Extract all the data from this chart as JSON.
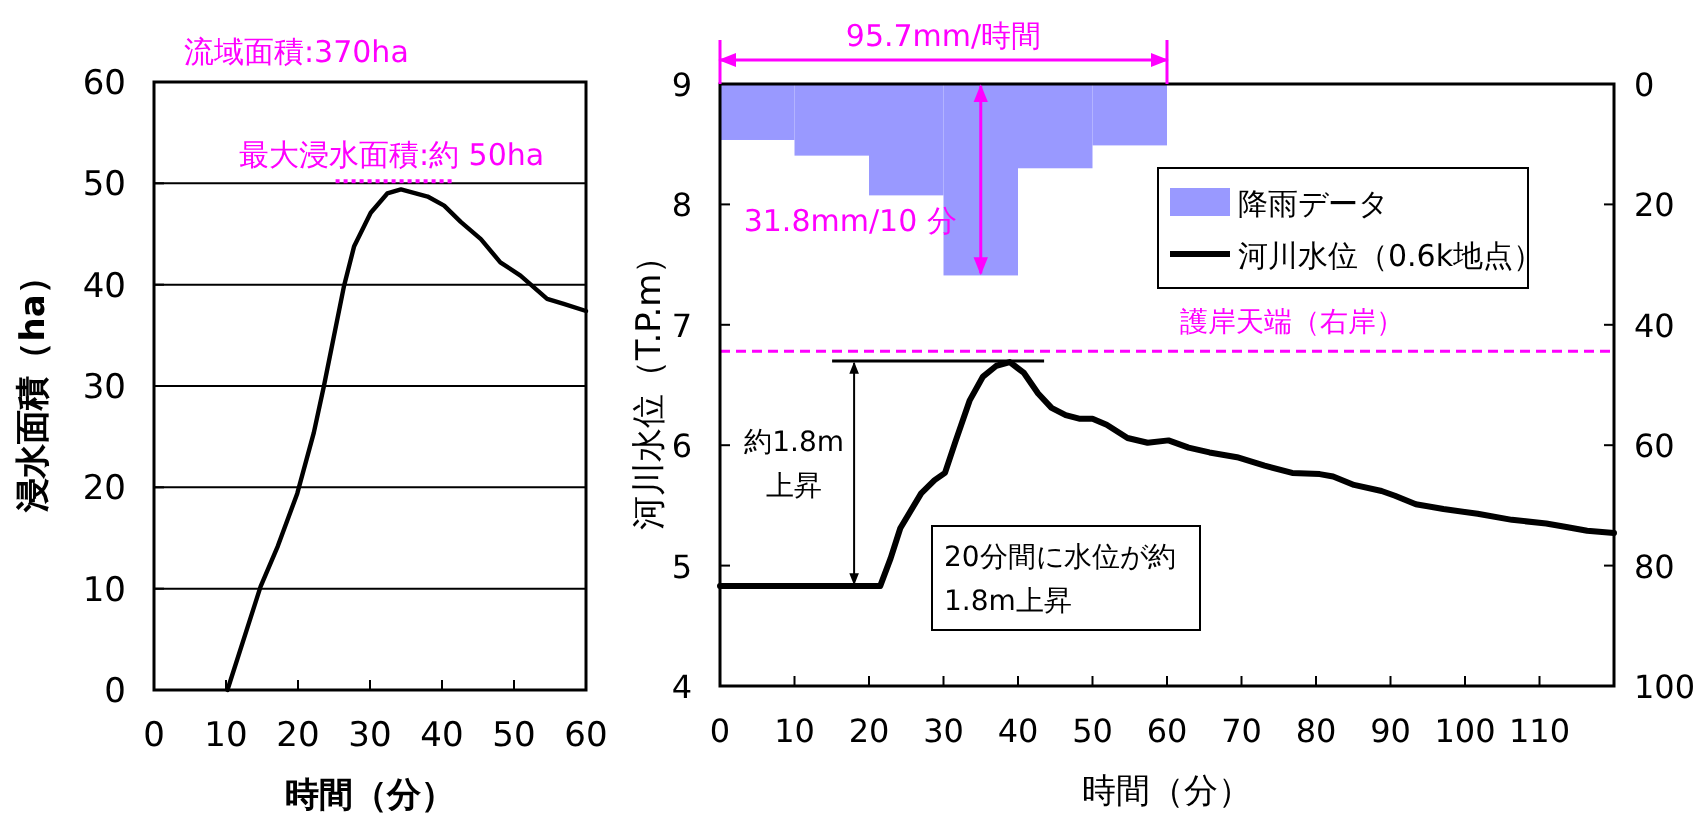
{
  "chart_data": [
    {
      "type": "line",
      "xlabel": "時間（分）",
      "ylabel": "浸水面積（ha）",
      "x": [
        10.2,
        14.8,
        17.2,
        19.9,
        22.2,
        23.6,
        26.4,
        27.8,
        30.1,
        32.4,
        34.3,
        38,
        40.3,
        42.6,
        45.4,
        48.1,
        50.9,
        54.6,
        56.9,
        60
      ],
      "series": [
        {
          "color": "#000000",
          "values": [
            0,
            10.2,
            14.2,
            19.4,
            25.4,
            30,
            39.9,
            43.8,
            47.1,
            49,
            49.4,
            48.7,
            47.8,
            46.2,
            44.5,
            42.2,
            40.9,
            38.6,
            38.1,
            37.4
          ]
        }
      ],
      "xlim": [
        0,
        60
      ],
      "ylim": [
        0,
        60
      ],
      "xticks": [
        0,
        10,
        20,
        30,
        40,
        50,
        60
      ],
      "yticks": [
        0,
        10,
        20,
        30,
        40,
        50,
        60
      ],
      "grid": "y",
      "annotations": [
        "流域面積:370ha",
        {
          "text": "最大浸水面積:約 50ha",
          "x": 33,
          "y": 50
        }
      ]
    },
    {
      "type": "line",
      "xlabel": "時間（分）",
      "ylabel": "河川水位（T.P.m）",
      "series": [
        {
          "name": "降雨データ",
          "type": "bar",
          "axis": "y2",
          "color": "#9999ff",
          "x": [
            5,
            15,
            25,
            35,
            45,
            55
          ],
          "values": [
            9.3,
            11.9,
            18.5,
            31.8,
            14.0,
            10.2
          ]
        },
        {
          "name": "河川水位（0.6k地点）",
          "color": "#000000",
          "x": [
            0,
            21.5,
            22.9,
            24.2,
            27,
            28.8,
            30.2,
            31.6,
            33.5,
            35.3,
            37.1,
            38.9,
            40.8,
            42.7,
            44.5,
            46.4,
            48.2,
            50,
            51.9,
            54.7,
            57.4,
            60.2,
            62.9,
            65.7,
            69.4,
            73.1,
            76.8,
            80.5,
            82.3,
            85.1,
            88.8,
            90.6,
            93.4,
            97.1,
            101.7,
            106.3,
            110.9,
            113.6,
            116.4,
            120
          ],
          "values": [
            4.83,
            4.83,
            5.06,
            5.31,
            5.6,
            5.71,
            5.77,
            6.03,
            6.37,
            6.57,
            6.66,
            6.69,
            6.6,
            6.43,
            6.31,
            6.25,
            6.22,
            6.22,
            6.17,
            6.06,
            6.02,
            6.04,
            5.98,
            5.94,
            5.9,
            5.83,
            5.77,
            5.76,
            5.74,
            5.67,
            5.62,
            5.58,
            5.51,
            5.47,
            5.43,
            5.38,
            5.35,
            5.32,
            5.29,
            5.27
          ]
        }
      ],
      "xlim": [
        0,
        120
      ],
      "xticks": [
        0,
        10,
        20,
        30,
        40,
        50,
        60,
        70,
        80,
        90,
        100,
        110
      ],
      "ylim": [
        4,
        9
      ],
      "yticks": [
        4,
        5,
        6,
        7,
        8,
        9
      ],
      "y2lim": [
        100,
        0
      ],
      "y2ticks": [
        0,
        20,
        40,
        60,
        80,
        100
      ],
      "ref_lines": [
        {
          "axis": "y",
          "value": 6.78,
          "label": "護岸天端（右岸）",
          "color": "#ff00ff",
          "line_style": "dashed"
        }
      ],
      "legend": "top right",
      "annotations": [
        {
          "text": "95.7mm/時間",
          "x": 30,
          "y": 9
        },
        {
          "text": "31.8mm/10 分",
          "x": 35,
          "y": 7.41
        },
        {
          "text": "約1.8m\n上昇",
          "x": 18,
          "y": 6.7
        },
        "20分間に水位が約\n1.8m上昇"
      ]
    }
  ]
}
